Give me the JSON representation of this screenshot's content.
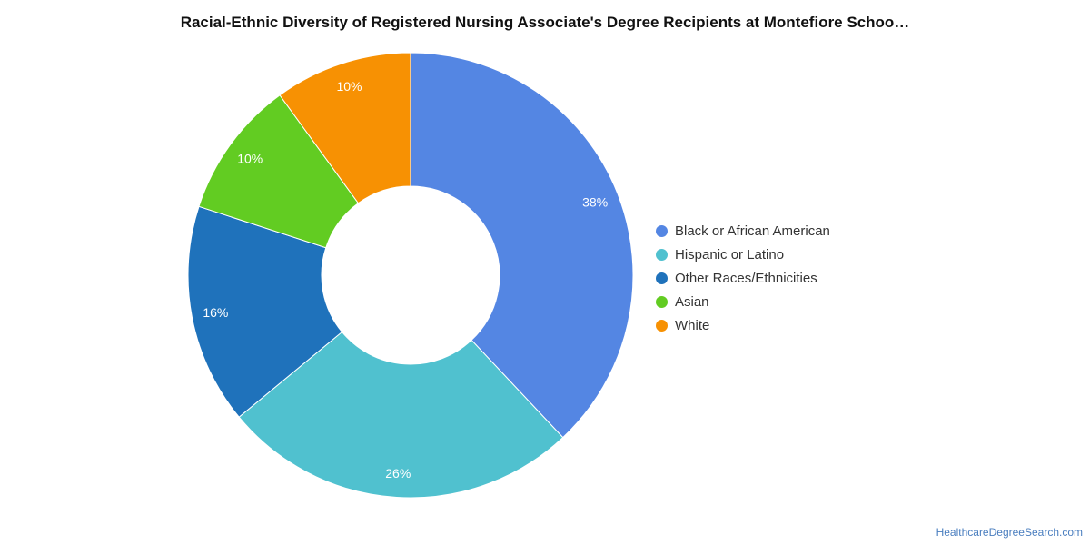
{
  "chart_data": {
    "type": "pie",
    "title": "Racial-Ethnic Diversity of Registered Nursing Associate's Degree Recipients at Montefiore Schoo…",
    "donut": true,
    "legend_position": "right",
    "slices": [
      {
        "name": "Black or African American",
        "value": 38,
        "label": "38%",
        "color": "#5486e3"
      },
      {
        "name": "Hispanic or Latino",
        "value": 26,
        "label": "26%",
        "color": "#50c1cf"
      },
      {
        "name": "Other Races/Ethnicities",
        "value": 16,
        "label": "16%",
        "color": "#1f72bb"
      },
      {
        "name": "Asian",
        "value": 10,
        "label": "10%",
        "color": "#62cc22"
      },
      {
        "name": "White",
        "value": 10,
        "label": "10%",
        "color": "#f79103"
      }
    ]
  },
  "watermark": "HealthcareDegreeSearch.com"
}
